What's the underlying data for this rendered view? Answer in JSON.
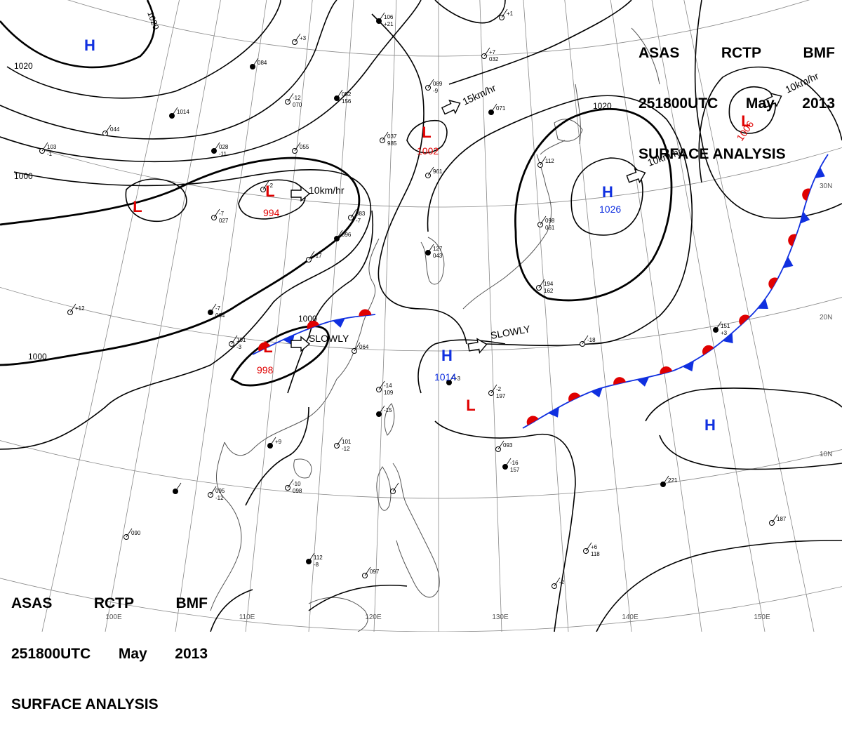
{
  "title": {
    "line1": [
      "ASAS",
      "RCTP",
      "BMF"
    ],
    "line2": [
      "251800UTC",
      "May",
      "2013"
    ],
    "line3": "SURFACE ANALYSIS"
  },
  "colors": {
    "low": "#e00000",
    "high": "#1030e0",
    "isobar": "#000000",
    "grid": "#888888"
  },
  "isobar_labels": [
    "1020",
    "1020",
    "1000",
    "1000",
    "1000",
    "1020"
  ],
  "pressure_centers": [
    {
      "symbol": "H",
      "value": "",
      "color": "high"
    },
    {
      "symbol": "L",
      "value": "994",
      "color": "low"
    },
    {
      "symbol": "L",
      "value": "",
      "color": "low"
    },
    {
      "symbol": "L",
      "value": "998",
      "color": "low"
    },
    {
      "symbol": "L",
      "value": "1002",
      "color": "low"
    },
    {
      "symbol": "L",
      "value": "",
      "color": "low"
    },
    {
      "symbol": "H",
      "value": "1026",
      "color": "high"
    },
    {
      "symbol": "L",
      "value": "1006",
      "color": "low"
    },
    {
      "symbol": "H",
      "value": "1014",
      "color": "high"
    },
    {
      "symbol": "L",
      "value": "",
      "color": "low"
    },
    {
      "symbol": "H",
      "value": "",
      "color": "high"
    }
  ],
  "motion_labels": [
    "10km/hr",
    "SLOWLY",
    "15km/hr",
    "10km/hr",
    "SLOWLY",
    "10km/hr"
  ],
  "longitude_labels": [
    "100E",
    "110E",
    "120E",
    "130E",
    "140E",
    "150E"
  ],
  "latitude_labels": [
    "30N",
    "20N",
    "10N"
  ],
  "station_reports": [
    "106",
    "+21",
    "064",
    "-14",
    "109",
    "-15",
    "101",
    "-12",
    "093",
    "-16",
    "157",
    "-18",
    "194",
    "162",
    "221",
    "+6",
    "118",
    "-2",
    "112",
    "-8",
    "097",
    "-10",
    "098",
    "+9",
    "095",
    "-12",
    "090",
    "-7",
    "064",
    "-17",
    "083",
    "-7",
    "096",
    "-7",
    "027",
    "-2",
    "028",
    "-11",
    "055",
    "-12",
    "070",
    "084",
    "037",
    "985",
    "961",
    "127",
    "043",
    "112",
    "098",
    "061",
    "071",
    "+7",
    "032",
    "+1",
    "151",
    "+3",
    "187",
    "-2",
    "197",
    "+3",
    "103",
    "-1",
    "044",
    "052",
    "156",
    "+3",
    "101",
    "-3",
    "1014",
    "089",
    "-9",
    "+12"
  ]
}
